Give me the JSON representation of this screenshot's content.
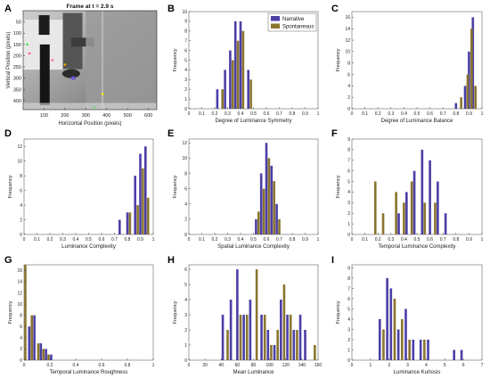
{
  "panel_letters": [
    "A",
    "B",
    "C",
    "D",
    "E",
    "F",
    "G",
    "H",
    "I"
  ],
  "colors": {
    "narrative": "#4b3fa6",
    "spontaneous": "#8a7530"
  },
  "frame_panel": {
    "title": "Frame at t = 2.9 s",
    "xlabel": "Horizontal Position (pixels)",
    "ylabel": "Vertical Position (pixels)",
    "xticks": [
      100,
      200,
      300,
      400,
      500,
      600
    ],
    "yticks": [
      50,
      100,
      150,
      200,
      250,
      300,
      350,
      400
    ],
    "xlim": [
      0,
      640
    ],
    "ylim": [
      0,
      440
    ]
  },
  "chart_data": [
    {
      "panel": "B",
      "type": "bar",
      "title": "",
      "xlabel": "Degree of Luminance Symmetry",
      "ylabel": "Frequency",
      "xlim": [
        0,
        1
      ],
      "ylim": [
        0,
        10
      ],
      "xticks": [
        "0",
        "0.1",
        "0.2",
        "0.3",
        "0.4",
        "0.5",
        "0.6",
        "0.7",
        "0.8",
        "0.9",
        "1"
      ],
      "yticks": [
        0,
        1,
        2,
        3,
        4,
        5,
        6,
        7,
        8,
        9,
        10
      ],
      "legend": {
        "position": "top-right",
        "entries": [
          "Narrative",
          "Spontaneous"
        ]
      },
      "series": [
        {
          "name": "Narrative",
          "x": [
            0.22,
            0.28,
            0.32,
            0.36,
            0.4,
            0.46
          ],
          "values": [
            2,
            4,
            6,
            9,
            9,
            4
          ]
        },
        {
          "name": "Spontaneous",
          "x": [
            0.26,
            0.34,
            0.38,
            0.42,
            0.48
          ],
          "values": [
            2,
            5,
            7,
            8,
            3
          ]
        }
      ]
    },
    {
      "panel": "C",
      "type": "bar",
      "title": "",
      "xlabel": "Degree of Luminance Balance",
      "ylabel": "Frequency",
      "xlim": [
        0,
        1
      ],
      "ylim": [
        0,
        17
      ],
      "xticks": [
        "0",
        "0.1",
        "0.2",
        "0.3",
        "0.4",
        "0.5",
        "0.6",
        "0.7",
        "0.8",
        "0.9",
        "1"
      ],
      "yticks": [
        0,
        2,
        4,
        6,
        8,
        10,
        12,
        14,
        16
      ],
      "series": [
        {
          "name": "Narrative",
          "x": [
            0.8,
            0.87,
            0.9,
            0.93
          ],
          "values": [
            1,
            4,
            10,
            16
          ]
        },
        {
          "name": "Spontaneous",
          "x": [
            0.84,
            0.89,
            0.92,
            0.95
          ],
          "values": [
            2,
            6,
            14,
            4
          ]
        }
      ]
    },
    {
      "panel": "D",
      "type": "bar",
      "title": "",
      "xlabel": "Luminance Complexity",
      "ylabel": "Frequency",
      "xlim": [
        0,
        1
      ],
      "ylim": [
        0,
        13
      ],
      "xticks": [
        "0",
        "0.1",
        "0.2",
        "0.3",
        "0.4",
        "0.5",
        "0.6",
        "0.7",
        "0.8",
        "0.9",
        "1"
      ],
      "yticks": [
        0,
        2,
        4,
        6,
        8,
        10,
        12
      ],
      "series": [
        {
          "name": "Narrative",
          "x": [
            0.74,
            0.8,
            0.86,
            0.9,
            0.94
          ],
          "values": [
            2,
            3,
            8,
            11,
            12
          ]
        },
        {
          "name": "Spontaneous",
          "x": [
            0.82,
            0.88,
            0.92,
            0.96
          ],
          "values": [
            3,
            4,
            9,
            5
          ]
        }
      ]
    },
    {
      "panel": "E",
      "type": "bar",
      "title": "",
      "xlabel": "Spatial Luminance Complexity",
      "ylabel": "Frequency",
      "xlim": [
        0,
        1
      ],
      "ylim": [
        0,
        12.5
      ],
      "xticks": [
        "0",
        "0.1",
        "0.2",
        "0.3",
        "0.4",
        "0.5",
        "0.6",
        "0.7",
        "0.8",
        "0.9",
        "1"
      ],
      "yticks": [
        0,
        2,
        4,
        6,
        8,
        10,
        12
      ],
      "series": [
        {
          "name": "Narrative",
          "x": [
            0.52,
            0.56,
            0.6,
            0.64,
            0.68
          ],
          "values": [
            2,
            8,
            12,
            9,
            4
          ]
        },
        {
          "name": "Spontaneous",
          "x": [
            0.54,
            0.58,
            0.62,
            0.66,
            0.7
          ],
          "values": [
            3,
            6,
            10,
            7,
            2
          ]
        }
      ]
    },
    {
      "panel": "F",
      "type": "bar",
      "title": "",
      "xlabel": "Temporal Luminance Complexity",
      "ylabel": "Frequency",
      "xlim": [
        0,
        1
      ],
      "ylim": [
        0,
        9
      ],
      "xticks": [
        "0",
        "0.1",
        "0.2",
        "0.3",
        "0.4",
        "0.5",
        "0.6",
        "0.7",
        "0.8",
        "0.9",
        "1"
      ],
      "yticks": [
        0,
        1,
        2,
        3,
        4,
        5,
        6,
        7,
        8,
        9
      ],
      "series": [
        {
          "name": "Narrative",
          "x": [
            0.36,
            0.42,
            0.48,
            0.54,
            0.6,
            0.66,
            0.72
          ],
          "values": [
            2,
            4,
            6,
            8,
            7,
            5,
            2
          ]
        },
        {
          "name": "Spontaneous",
          "x": [
            0.18,
            0.24,
            0.34,
            0.4,
            0.46,
            0.56,
            0.64
          ],
          "values": [
            5,
            2,
            4,
            3,
            5,
            3,
            3
          ]
        }
      ]
    },
    {
      "panel": "G",
      "type": "bar",
      "title": "",
      "xlabel": "Temporal Luminance Roughness",
      "ylabel": "Frequency",
      "xlim": [
        0,
        1
      ],
      "ylim": [
        0,
        17
      ],
      "xticks": [
        "0",
        "0.2",
        "0.4",
        "0.6",
        "0.8",
        "1"
      ],
      "yticks": [
        0,
        2,
        4,
        6,
        8,
        10,
        12,
        14,
        16
      ],
      "series": [
        {
          "name": "Narrative",
          "x": [
            0.04,
            0.08,
            0.13,
            0.17,
            0.21
          ],
          "values": [
            6,
            8,
            3,
            2,
            1
          ]
        },
        {
          "name": "Spontaneous",
          "x": [
            0.01,
            0.06,
            0.11,
            0.15,
            0.19
          ],
          "values": [
            17,
            8,
            3,
            2,
            1
          ]
        }
      ]
    },
    {
      "panel": "H",
      "type": "bar",
      "title": "",
      "xlabel": "Mean Luminance",
      "ylabel": "Frequency",
      "xlim": [
        0,
        160
      ],
      "ylim": [
        0,
        6.3
      ],
      "xticks": [
        "0",
        "20",
        "40",
        "60",
        "80",
        "100",
        "120",
        "140",
        "160"
      ],
      "yticks": [
        0,
        1,
        2,
        3,
        4,
        5,
        6
      ],
      "series": [
        {
          "name": "Narrative",
          "x": [
            42,
            52,
            60,
            68,
            76,
            90,
            98,
            106,
            114,
            122,
            130,
            138,
            144
          ],
          "values": [
            3,
            4,
            6,
            3,
            4,
            3,
            2,
            1,
            4,
            3,
            2,
            3,
            2
          ]
        },
        {
          "name": "Spontaneous",
          "x": [
            48,
            64,
            72,
            84,
            94,
            102,
            110,
            118,
            126,
            134,
            156
          ],
          "values": [
            2,
            3,
            3,
            6,
            3,
            1,
            2,
            5,
            3,
            2,
            1
          ]
        }
      ]
    },
    {
      "panel": "I",
      "type": "bar",
      "title": "",
      "xlabel": "Luminance Kurtosis",
      "ylabel": "Frequency",
      "xlim": [
        0,
        7
      ],
      "ylim": [
        0,
        9.3
      ],
      "xticks": [
        "0",
        "1",
        "2",
        "3",
        "4",
        "5",
        "6",
        "7"
      ],
      "yticks": [
        0,
        1,
        2,
        3,
        4,
        5,
        6,
        7,
        8,
        9
      ],
      "series": [
        {
          "name": "Narrative",
          "x": [
            1.5,
            1.9,
            2.1,
            2.5,
            2.9,
            3.3,
            3.7,
            4.1,
            5.5,
            5.9
          ],
          "values": [
            4,
            8,
            7,
            3,
            5,
            2,
            2,
            2,
            1,
            1
          ]
        },
        {
          "name": "Spontaneous",
          "x": [
            1.7,
            2.3,
            2.7,
            3.1,
            3.9
          ],
          "values": [
            3,
            6,
            4,
            2,
            2
          ]
        }
      ]
    }
  ]
}
